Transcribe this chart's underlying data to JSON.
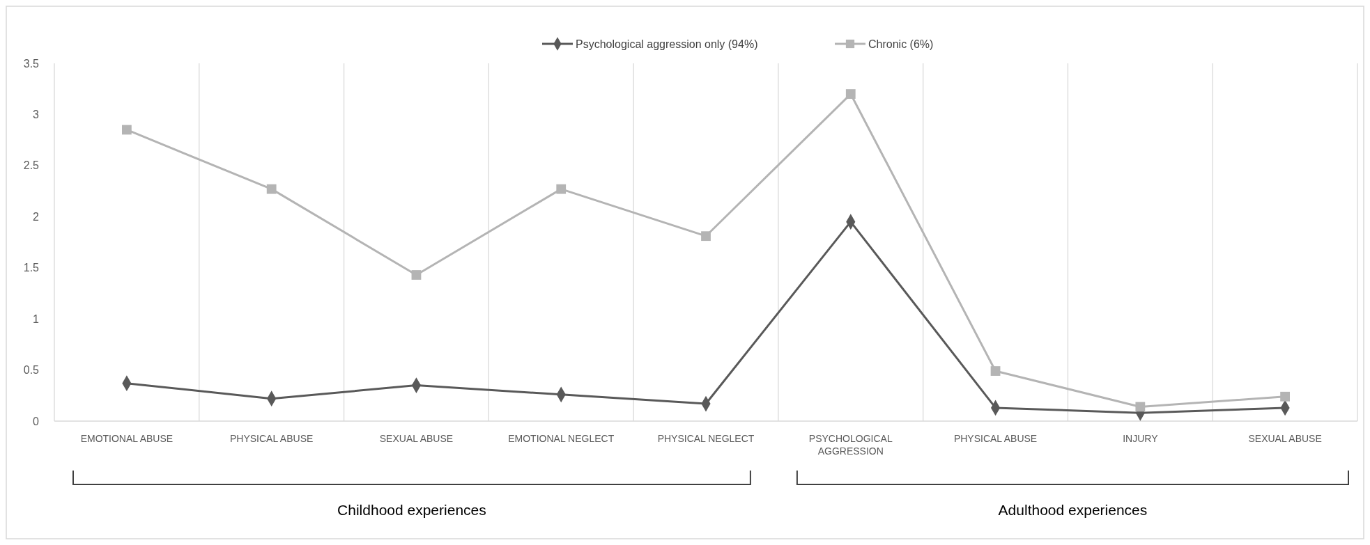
{
  "chart_data": {
    "type": "line",
    "categories": [
      "EMOTIONAL ABUSE",
      "PHYSICAL ABUSE",
      "SEXUAL ABUSE",
      "EMOTIONAL NEGLECT",
      "PHYSICAL NEGLECT",
      "PSYCHOLOGICAL AGGRESSION",
      "PHYSICAL ABUSE",
      "INJURY",
      "SEXUAL ABUSE"
    ],
    "series": [
      {
        "name": "Psychological aggression only (94%)",
        "color": "#595959",
        "marker": "diamond",
        "values": [
          0.37,
          0.22,
          0.35,
          0.26,
          0.17,
          1.95,
          0.13,
          0.08,
          0.13
        ]
      },
      {
        "name": "Chronic (6%)",
        "color": "#b4b4b4",
        "marker": "square",
        "values": [
          2.85,
          2.27,
          1.43,
          2.27,
          1.81,
          3.2,
          0.49,
          0.14,
          0.24
        ]
      }
    ],
    "ylim": [
      0,
      3.5
    ],
    "yticks": [
      0,
      0.5,
      1,
      1.5,
      2,
      2.5,
      3,
      3.5
    ],
    "grid": "x",
    "legend": "top",
    "annotations": [
      "Childhood experiences",
      "Adulthood experiences"
    ]
  }
}
